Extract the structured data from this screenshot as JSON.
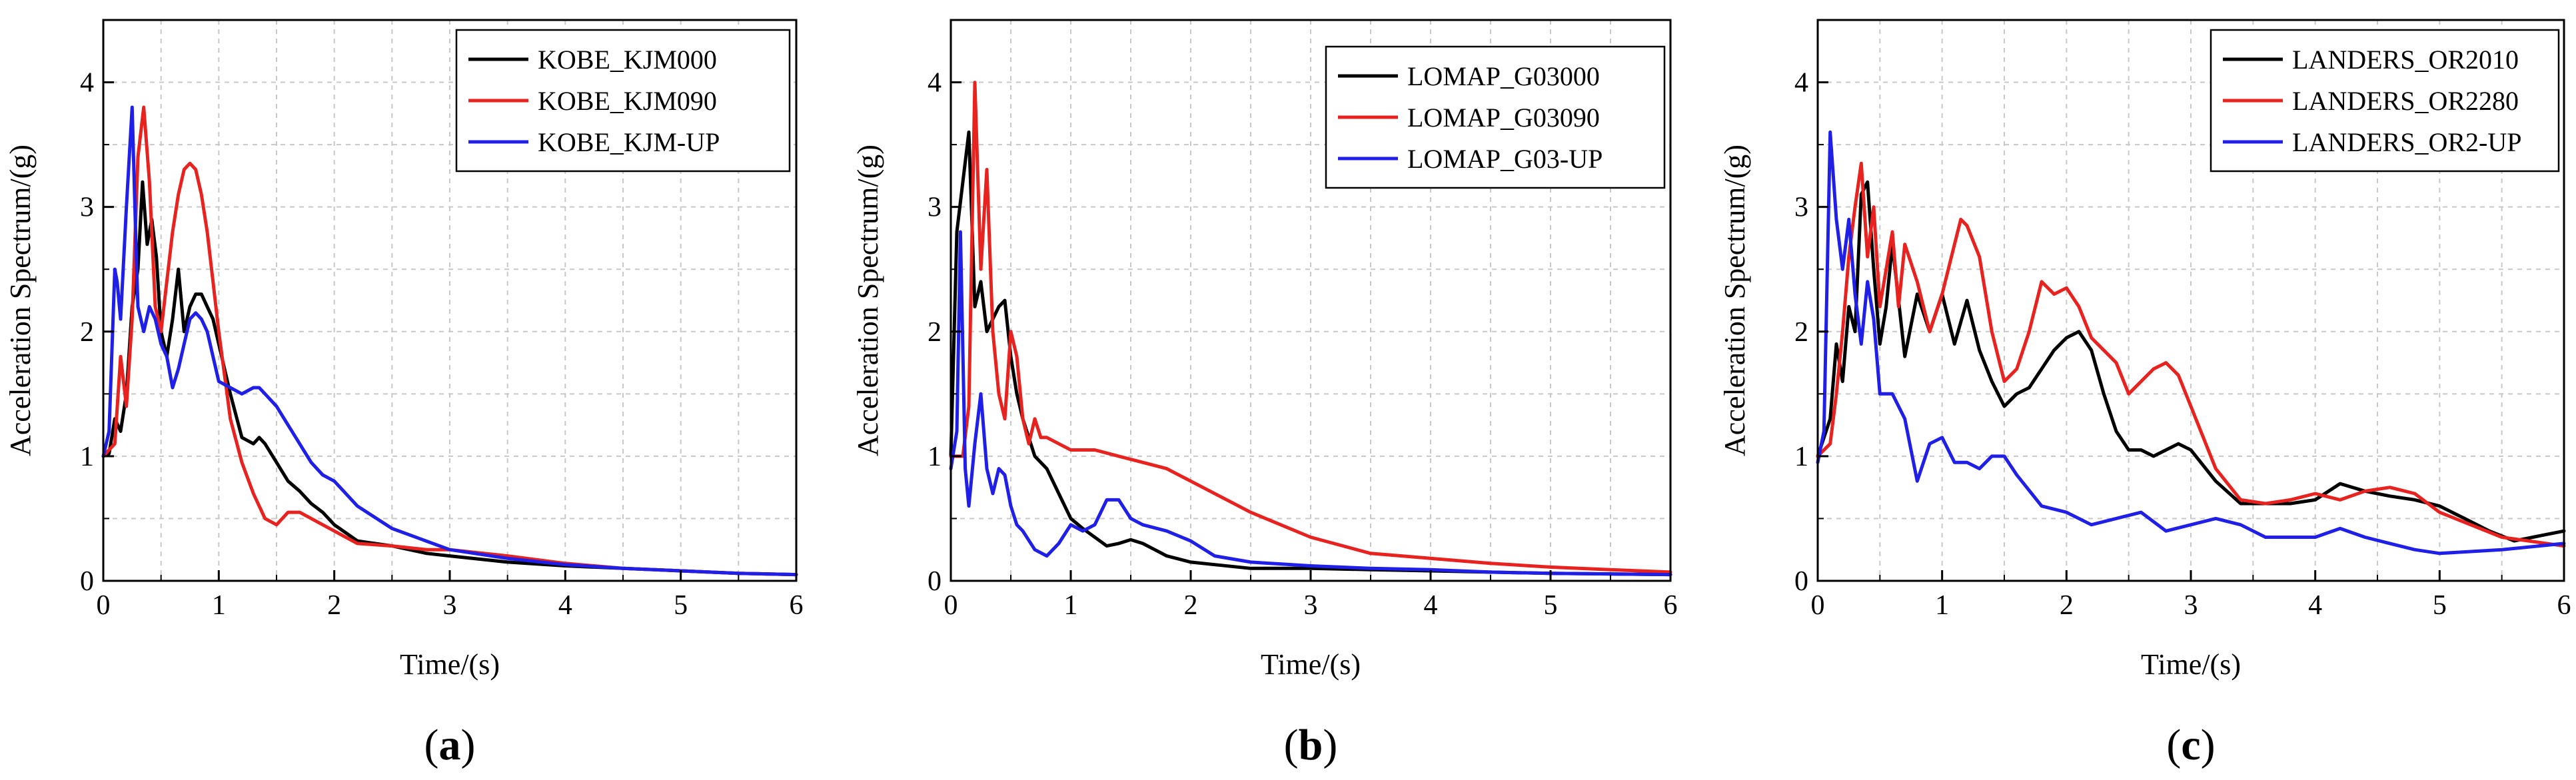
{
  "figure": {
    "colors": {
      "black": "#000000",
      "red": "#e8221f",
      "blue": "#1f1fe8",
      "grid": "#c8c8c8"
    }
  },
  "chart_data": [
    {
      "type": "line",
      "panel_label": "a",
      "xlabel": "Time/(s)",
      "ylabel": "Acceleration Spectrum/(g)",
      "xlim": [
        0,
        6
      ],
      "ylim": [
        0,
        4.5
      ],
      "xticks": [
        "0",
        "1",
        "2",
        "3",
        "4",
        "5",
        "6"
      ],
      "yticks": [
        "0",
        "1",
        "2",
        "3",
        "4"
      ],
      "grid": true,
      "legend_position": "top-right",
      "series": [
        {
          "name": "KOBE_KJM000",
          "color": "#000000",
          "x": [
            0,
            0.05,
            0.1,
            0.15,
            0.2,
            0.25,
            0.3,
            0.34,
            0.38,
            0.42,
            0.46,
            0.5,
            0.55,
            0.6,
            0.65,
            0.7,
            0.75,
            0.8,
            0.85,
            0.9,
            0.95,
            1.0,
            1.1,
            1.2,
            1.3,
            1.35,
            1.4,
            1.5,
            1.6,
            1.7,
            1.8,
            1.9,
            2.0,
            2.2,
            2.5,
            2.8,
            3.0,
            3.5,
            4.0,
            4.5,
            5.0,
            5.5,
            6.0
          ],
          "y": [
            1.0,
            1.02,
            1.3,
            1.2,
            1.5,
            2.2,
            2.5,
            3.2,
            2.7,
            2.9,
            2.6,
            2.0,
            1.8,
            2.1,
            2.5,
            2.0,
            2.2,
            2.3,
            2.3,
            2.2,
            2.1,
            1.9,
            1.5,
            1.15,
            1.1,
            1.15,
            1.1,
            0.95,
            0.8,
            0.72,
            0.62,
            0.55,
            0.45,
            0.32,
            0.28,
            0.22,
            0.2,
            0.15,
            0.12,
            0.1,
            0.08,
            0.06,
            0.05
          ]
        },
        {
          "name": "KOBE_KJM090",
          "color": "#e8221f",
          "x": [
            0,
            0.05,
            0.1,
            0.15,
            0.2,
            0.25,
            0.3,
            0.35,
            0.4,
            0.45,
            0.5,
            0.55,
            0.6,
            0.65,
            0.7,
            0.75,
            0.8,
            0.85,
            0.9,
            0.95,
            1.0,
            1.1,
            1.2,
            1.3,
            1.4,
            1.5,
            1.6,
            1.7,
            1.8,
            1.9,
            2.0,
            2.2,
            2.5,
            2.8,
            3.0,
            3.5,
            4.0,
            4.5,
            5.0,
            5.5,
            6.0
          ],
          "y": [
            1.0,
            1.05,
            1.1,
            1.8,
            1.4,
            2.1,
            3.4,
            3.8,
            3.2,
            2.2,
            2.0,
            2.4,
            2.8,
            3.1,
            3.3,
            3.35,
            3.3,
            3.1,
            2.8,
            2.4,
            2.0,
            1.3,
            0.95,
            0.7,
            0.5,
            0.45,
            0.55,
            0.55,
            0.5,
            0.45,
            0.4,
            0.3,
            0.28,
            0.25,
            0.25,
            0.2,
            0.14,
            0.1,
            0.08,
            0.06,
            0.05
          ]
        },
        {
          "name": "KOBE_KJM-UP",
          "color": "#1f1fe8",
          "x": [
            0,
            0.05,
            0.1,
            0.12,
            0.15,
            0.2,
            0.25,
            0.28,
            0.3,
            0.35,
            0.4,
            0.45,
            0.5,
            0.55,
            0.6,
            0.65,
            0.7,
            0.75,
            0.8,
            0.85,
            0.9,
            1.0,
            1.1,
            1.2,
            1.3,
            1.35,
            1.4,
            1.5,
            1.6,
            1.7,
            1.8,
            1.9,
            2.0,
            2.2,
            2.5,
            3.0,
            3.5,
            4.0,
            4.5,
            5.0,
            5.5,
            6.0
          ],
          "y": [
            1.0,
            1.2,
            2.5,
            2.4,
            2.1,
            3.0,
            3.8,
            2.8,
            2.2,
            2.0,
            2.2,
            2.1,
            1.9,
            1.8,
            1.55,
            1.7,
            1.9,
            2.1,
            2.15,
            2.1,
            2.0,
            1.6,
            1.55,
            1.5,
            1.55,
            1.55,
            1.5,
            1.4,
            1.25,
            1.1,
            0.95,
            0.85,
            0.8,
            0.6,
            0.42,
            0.25,
            0.18,
            0.13,
            0.1,
            0.08,
            0.06,
            0.05
          ]
        }
      ]
    },
    {
      "type": "line",
      "panel_label": "b",
      "xlabel": "Time/(s)",
      "ylabel": "Acceleration Spectrum/(g)",
      "xlim": [
        0,
        6
      ],
      "ylim": [
        0,
        4.5
      ],
      "xticks": [
        "0",
        "1",
        "2",
        "3",
        "4",
        "5",
        "6"
      ],
      "yticks": [
        "0",
        "1",
        "2",
        "3",
        "4"
      ],
      "grid": true,
      "legend_position": "top-right",
      "series": [
        {
          "name": "LOMAP_G03000",
          "color": "#000000",
          "x": [
            0,
            0.05,
            0.1,
            0.15,
            0.2,
            0.25,
            0.3,
            0.35,
            0.4,
            0.45,
            0.5,
            0.55,
            0.6,
            0.7,
            0.8,
            0.9,
            1.0,
            1.1,
            1.2,
            1.3,
            1.4,
            1.5,
            1.6,
            1.7,
            1.8,
            2.0,
            2.2,
            2.5,
            3.0,
            3.5,
            4.0,
            5.0,
            6.0
          ],
          "y": [
            1.0,
            2.8,
            3.2,
            3.6,
            2.2,
            2.4,
            2.0,
            2.1,
            2.2,
            2.25,
            1.8,
            1.5,
            1.3,
            1.0,
            0.9,
            0.7,
            0.5,
            0.42,
            0.35,
            0.28,
            0.3,
            0.33,
            0.3,
            0.25,
            0.2,
            0.15,
            0.13,
            0.1,
            0.1,
            0.09,
            0.08,
            0.06,
            0.05
          ]
        },
        {
          "name": "LOMAP_G03090",
          "color": "#e8221f",
          "x": [
            0,
            0.05,
            0.1,
            0.15,
            0.2,
            0.25,
            0.3,
            0.35,
            0.4,
            0.45,
            0.5,
            0.55,
            0.6,
            0.65,
            0.7,
            0.75,
            0.8,
            0.9,
            1.0,
            1.2,
            1.4,
            1.6,
            1.8,
            2.0,
            2.5,
            3.0,
            3.5,
            4.0,
            4.5,
            5.0,
            5.5,
            6.0
          ],
          "y": [
            1.0,
            1.0,
            1.0,
            1.4,
            4.0,
            2.5,
            3.3,
            2.0,
            1.5,
            1.3,
            2.0,
            1.8,
            1.3,
            1.1,
            1.3,
            1.15,
            1.15,
            1.1,
            1.05,
            1.05,
            1.0,
            0.95,
            0.9,
            0.8,
            0.55,
            0.35,
            0.22,
            0.18,
            0.14,
            0.11,
            0.09,
            0.07
          ]
        },
        {
          "name": "LOMAP_G03-UP",
          "color": "#1f1fe8",
          "x": [
            0,
            0.05,
            0.08,
            0.12,
            0.15,
            0.2,
            0.25,
            0.3,
            0.35,
            0.4,
            0.45,
            0.5,
            0.55,
            0.6,
            0.7,
            0.8,
            0.9,
            1.0,
            1.1,
            1.2,
            1.3,
            1.4,
            1.5,
            1.6,
            1.8,
            2.0,
            2.2,
            2.5,
            3.0,
            3.5,
            4.0,
            4.5,
            5.0,
            6.0
          ],
          "y": [
            0.9,
            1.2,
            2.8,
            0.9,
            0.6,
            1.1,
            1.5,
            0.9,
            0.7,
            0.9,
            0.85,
            0.6,
            0.45,
            0.4,
            0.25,
            0.2,
            0.3,
            0.45,
            0.4,
            0.45,
            0.65,
            0.65,
            0.5,
            0.45,
            0.4,
            0.32,
            0.2,
            0.15,
            0.12,
            0.1,
            0.09,
            0.07,
            0.06,
            0.05
          ]
        }
      ]
    },
    {
      "type": "line",
      "panel_label": "c",
      "xlabel": "Time/(s)",
      "ylabel": "Acceleration Spectrum/(g)",
      "xlim": [
        0,
        6
      ],
      "ylim": [
        0,
        4.5
      ],
      "xticks": [
        "0",
        "1",
        "2",
        "3",
        "4",
        "5",
        "6"
      ],
      "yticks": [
        "0",
        "1",
        "2",
        "3",
        "4"
      ],
      "grid": true,
      "legend_position": "top-right",
      "series": [
        {
          "name": "LANDERS_OR2010",
          "color": "#000000",
          "x": [
            0,
            0.1,
            0.15,
            0.2,
            0.25,
            0.3,
            0.35,
            0.4,
            0.45,
            0.5,
            0.55,
            0.6,
            0.7,
            0.8,
            0.9,
            1.0,
            1.1,
            1.2,
            1.3,
            1.4,
            1.5,
            1.6,
            1.7,
            1.8,
            1.9,
            2.0,
            2.1,
            2.2,
            2.3,
            2.4,
            2.5,
            2.6,
            2.7,
            2.8,
            2.9,
            3.0,
            3.2,
            3.4,
            3.6,
            3.8,
            4.0,
            4.2,
            4.4,
            4.6,
            4.8,
            5.0,
            5.2,
            5.4,
            5.6,
            5.8,
            6.0
          ],
          "y": [
            1.0,
            1.3,
            1.9,
            1.6,
            2.2,
            2.0,
            3.1,
            3.2,
            2.5,
            1.9,
            2.2,
            2.7,
            1.8,
            2.3,
            2.0,
            2.3,
            1.9,
            2.25,
            1.85,
            1.6,
            1.4,
            1.5,
            1.55,
            1.7,
            1.85,
            1.95,
            2.0,
            1.85,
            1.5,
            1.2,
            1.05,
            1.05,
            1.0,
            1.05,
            1.1,
            1.05,
            0.8,
            0.62,
            0.62,
            0.62,
            0.65,
            0.78,
            0.72,
            0.68,
            0.65,
            0.6,
            0.5,
            0.4,
            0.32,
            0.36,
            0.4
          ]
        },
        {
          "name": "LANDERS_OR2280",
          "color": "#e8221f",
          "x": [
            0,
            0.1,
            0.15,
            0.2,
            0.25,
            0.3,
            0.35,
            0.4,
            0.45,
            0.5,
            0.55,
            0.6,
            0.65,
            0.7,
            0.8,
            0.9,
            1.0,
            1.1,
            1.15,
            1.2,
            1.3,
            1.4,
            1.5,
            1.6,
            1.7,
            1.8,
            1.9,
            2.0,
            2.1,
            2.2,
            2.3,
            2.4,
            2.5,
            2.6,
            2.7,
            2.8,
            2.9,
            3.0,
            3.2,
            3.4,
            3.6,
            3.8,
            4.0,
            4.2,
            4.4,
            4.6,
            4.8,
            5.0,
            5.5,
            6.0
          ],
          "y": [
            1.0,
            1.1,
            1.5,
            2.0,
            2.6,
            3.0,
            3.35,
            2.6,
            3.0,
            2.2,
            2.5,
            2.8,
            2.2,
            2.7,
            2.4,
            2.0,
            2.3,
            2.7,
            2.9,
            2.85,
            2.6,
            2.0,
            1.6,
            1.7,
            2.0,
            2.4,
            2.3,
            2.35,
            2.2,
            1.95,
            1.85,
            1.75,
            1.5,
            1.6,
            1.7,
            1.75,
            1.65,
            1.4,
            0.9,
            0.65,
            0.62,
            0.65,
            0.7,
            0.65,
            0.72,
            0.75,
            0.7,
            0.55,
            0.35,
            0.28
          ]
        },
        {
          "name": "LANDERS_OR2-UP",
          "color": "#1f1fe8",
          "x": [
            0,
            0.05,
            0.1,
            0.15,
            0.2,
            0.25,
            0.3,
            0.35,
            0.4,
            0.45,
            0.5,
            0.6,
            0.7,
            0.8,
            0.9,
            1.0,
            1.1,
            1.2,
            1.3,
            1.4,
            1.5,
            1.6,
            1.8,
            2.0,
            2.2,
            2.4,
            2.6,
            2.8,
            3.0,
            3.2,
            3.4,
            3.6,
            3.8,
            4.0,
            4.2,
            4.4,
            4.6,
            4.8,
            5.0,
            5.5,
            6.0
          ],
          "y": [
            0.95,
            1.2,
            3.6,
            2.9,
            2.5,
            2.9,
            2.3,
            1.9,
            2.4,
            2.1,
            1.5,
            1.5,
            1.3,
            0.8,
            1.1,
            1.15,
            0.95,
            0.95,
            0.9,
            1.0,
            1.0,
            0.85,
            0.6,
            0.55,
            0.45,
            0.5,
            0.55,
            0.4,
            0.45,
            0.5,
            0.45,
            0.35,
            0.35,
            0.35,
            0.42,
            0.35,
            0.3,
            0.25,
            0.22,
            0.25,
            0.3
          ]
        }
      ]
    }
  ]
}
